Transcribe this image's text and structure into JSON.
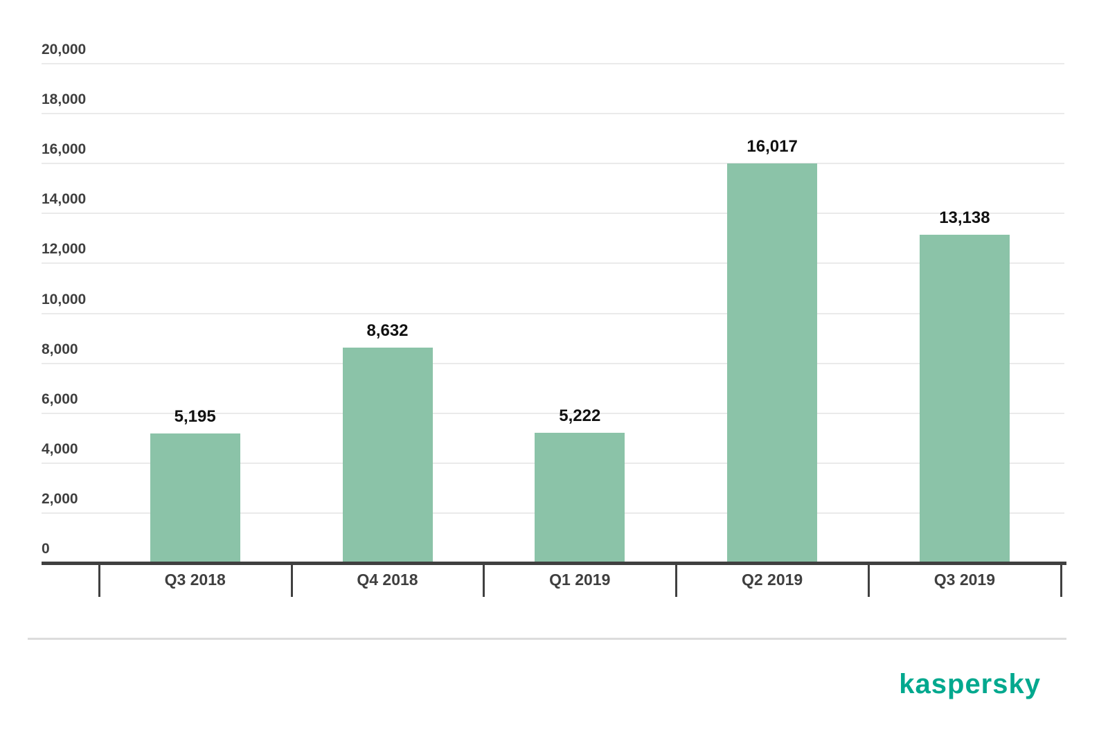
{
  "branding": {
    "logo_text": "kaspersky",
    "logo_color": "#00A88E"
  },
  "chart_data": {
    "type": "bar",
    "title": "",
    "xlabel": "",
    "ylabel": "",
    "categories": [
      "Q3 2018",
      "Q4 2018",
      "Q1 2019",
      "Q2 2019",
      "Q3 2019"
    ],
    "values": [
      5195,
      8632,
      5222,
      16017,
      13138
    ],
    "value_labels": [
      "5,195",
      "8,632",
      "5,222",
      "16,017",
      "13,138"
    ],
    "ylim": [
      0,
      20000
    ],
    "y_tick_step": 2000,
    "y_tick_values": [
      0,
      2000,
      4000,
      6000,
      8000,
      10000,
      12000,
      14000,
      16000,
      18000,
      20000
    ],
    "y_tick_labels": [
      "0",
      "2,000",
      "4,000",
      "6,000",
      "8,000",
      "10,000",
      "12,000",
      "14,000",
      "16,000",
      "18,000",
      "20,000"
    ],
    "grid": true,
    "legend": false,
    "bar_color": "#8BC3A8",
    "axis_color": "#404040",
    "gridline_color": "#EAEAEA",
    "tick_label_color": "#3F3F3F",
    "value_label_color": "#111111"
  }
}
